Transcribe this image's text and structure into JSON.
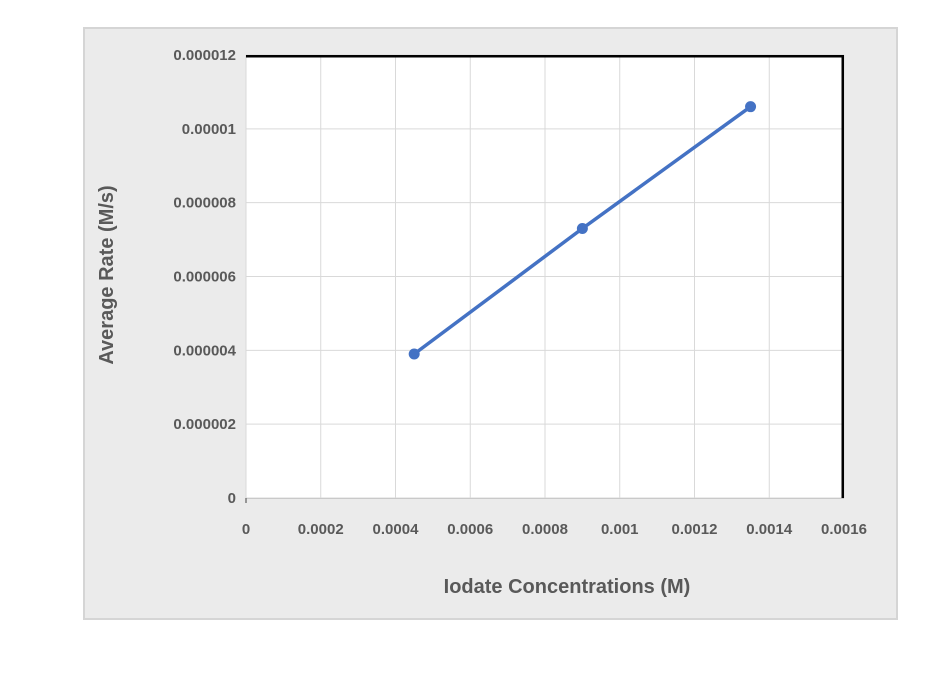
{
  "chart_data": {
    "type": "line",
    "grid": true,
    "legend": "none",
    "x_axis": {
      "title": "Iodate Concentrations (M)",
      "min": 0,
      "max": 0.0016,
      "tick_values": [
        0,
        0.0002,
        0.0004,
        0.0006,
        0.0008,
        0.001,
        0.0012,
        0.0014,
        0.0016
      ],
      "tick_labels": [
        "0",
        "0.0002",
        "0.0004",
        "0.0006",
        "0.0008",
        "0.001",
        "0.0012",
        "0.0014",
        "0.0016"
      ]
    },
    "y_axis": {
      "title": "Average Rate (M/s)",
      "min": 0,
      "max": 1.2e-05,
      "tick_values": [
        0,
        2e-06,
        4e-06,
        6e-06,
        8e-06,
        1e-05,
        1.2e-05
      ],
      "tick_labels": [
        "0",
        "0.000002",
        "0.000004",
        "0.000006",
        "0.000008",
        "0.00001",
        "0.000012"
      ]
    },
    "series": [
      {
        "color": "#4472C4",
        "marker": "circle",
        "points": [
          {
            "x": 0.00045,
            "y": 3.9e-06
          },
          {
            "x": 0.0009,
            "y": 7.3e-06
          },
          {
            "x": 0.00135,
            "y": 1.06e-05
          }
        ]
      }
    ]
  },
  "colors": {
    "series_blue": "#4472C4",
    "panel_background": "#ebebeb",
    "panel_border": "#d5d5d5",
    "plot_background": "#ffffff",
    "gridline": "#d9d9d9",
    "axis_line": "#c9c9c9",
    "plot_frame": "#000000",
    "label_text": "#595959"
  }
}
